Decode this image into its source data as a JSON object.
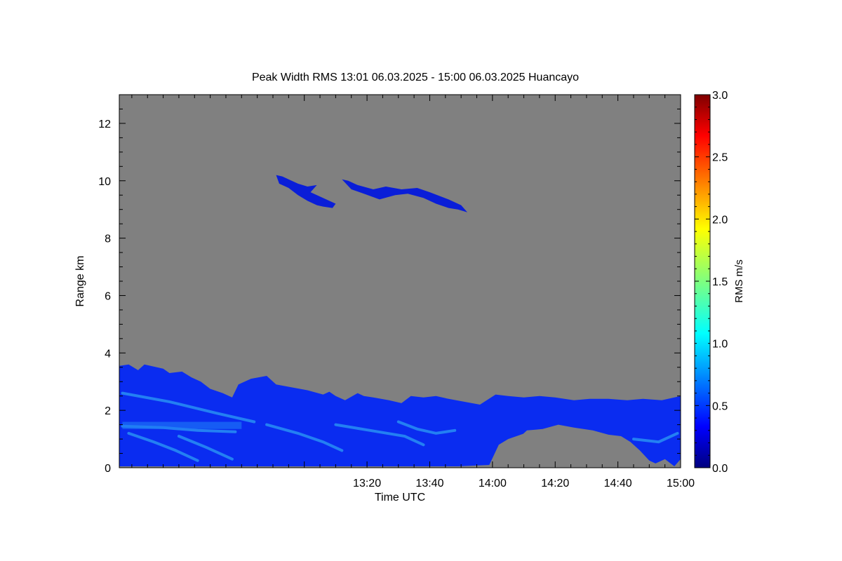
{
  "chart_data": {
    "type": "heatmap",
    "title": "Peak Width RMS   13:01 06.03.2025 - 15:00 06.03.2025 Huancayo",
    "xlabel": "Time UTC",
    "ylabel": "Range km",
    "x_range_minutes": [
      721,
      900
    ],
    "x_ticks": [
      {
        "minute": 800,
        "label": "13:20"
      },
      {
        "minute": 820,
        "label": "13:40"
      },
      {
        "minute": 840,
        "label": "14:00"
      },
      {
        "minute": 860,
        "label": "14:20"
      },
      {
        "minute": 880,
        "label": "14:40"
      },
      {
        "minute": 900,
        "label": "15:00"
      }
    ],
    "ylim": [
      0,
      13
    ],
    "y_ticks": [
      {
        "value": 0,
        "label": "0"
      },
      {
        "value": 2,
        "label": "2"
      },
      {
        "value": 4,
        "label": "4"
      },
      {
        "value": 6,
        "label": "6"
      },
      {
        "value": 8,
        "label": "8"
      },
      {
        "value": 10,
        "label": "10"
      },
      {
        "value": 12,
        "label": "12"
      }
    ],
    "background_color": "#808080",
    "colorbar": {
      "label": "RMS m/s",
      "range": [
        0,
        3
      ],
      "colormap": "jet",
      "ticks": [
        {
          "value": 0.0,
          "label": "0.0"
        },
        {
          "value": 0.5,
          "label": "0.5"
        },
        {
          "value": 1.0,
          "label": "1.0"
        },
        {
          "value": 1.5,
          "label": "1.5"
        },
        {
          "value": 2.0,
          "label": "2.0"
        },
        {
          "value": 2.5,
          "label": "2.5"
        },
        {
          "value": 3.0,
          "label": "3.0"
        }
      ]
    },
    "regions": [
      {
        "name": "boundary-layer-echo",
        "value": 0.35,
        "color": "#0a2cf0",
        "outline": [
          [
            721,
            0.05
          ],
          [
            721,
            3.55
          ],
          [
            724,
            3.6
          ],
          [
            727,
            3.4
          ],
          [
            729,
            3.6
          ],
          [
            735,
            3.45
          ],
          [
            737,
            3.3
          ],
          [
            741,
            3.35
          ],
          [
            744,
            3.15
          ],
          [
            747,
            3.0
          ],
          [
            750,
            2.75
          ],
          [
            754,
            2.6
          ],
          [
            757,
            2.45
          ],
          [
            759,
            2.9
          ],
          [
            763,
            3.1
          ],
          [
            768,
            3.2
          ],
          [
            771,
            2.9
          ],
          [
            776,
            2.8
          ],
          [
            781,
            2.7
          ],
          [
            786,
            2.55
          ],
          [
            788,
            2.65
          ],
          [
            790,
            2.5
          ],
          [
            793,
            2.35
          ],
          [
            797,
            2.6
          ],
          [
            799,
            2.5
          ],
          [
            802,
            2.45
          ],
          [
            807,
            2.35
          ],
          [
            811,
            2.25
          ],
          [
            814,
            2.5
          ],
          [
            818,
            2.45
          ],
          [
            822,
            2.5
          ],
          [
            826,
            2.4
          ],
          [
            831,
            2.3
          ],
          [
            836,
            2.2
          ],
          [
            841,
            2.55
          ],
          [
            845,
            2.5
          ],
          [
            850,
            2.45
          ],
          [
            855,
            2.5
          ],
          [
            860,
            2.45
          ],
          [
            866,
            2.35
          ],
          [
            871,
            2.4
          ],
          [
            877,
            2.4
          ],
          [
            883,
            2.35
          ],
          [
            888,
            2.4
          ],
          [
            894,
            2.35
          ],
          [
            900,
            2.5
          ],
          [
            900,
            0.3
          ],
          [
            898,
            0.05
          ],
          [
            895,
            0.3
          ],
          [
            892,
            0.15
          ],
          [
            890,
            0.25
          ],
          [
            887,
            0.6
          ],
          [
            884,
            0.9
          ],
          [
            881,
            1.1
          ],
          [
            877,
            1.15
          ],
          [
            872,
            1.3
          ],
          [
            866,
            1.4
          ],
          [
            861,
            1.5
          ],
          [
            856,
            1.35
          ],
          [
            851,
            1.3
          ],
          [
            849,
            1.1
          ],
          [
            847,
            1.0
          ],
          [
            845,
            0.9
          ],
          [
            843,
            0.75
          ],
          [
            841,
            0.5
          ],
          [
            840,
            0.1
          ],
          [
            829,
            0.05
          ],
          [
            808,
            0.05
          ],
          [
            790,
            0.05
          ],
          [
            755,
            0.05
          ]
        ]
      },
      {
        "name": "clear-gap-near-14-00",
        "value": null,
        "color": "#808080",
        "outline": [
          [
            839,
            0.1
          ],
          [
            842,
            0.8
          ],
          [
            845,
            1.0
          ],
          [
            849,
            1.15
          ],
          [
            853,
            1.3
          ],
          [
            858,
            1.25
          ],
          [
            862,
            1.1
          ],
          [
            866,
            1.0
          ],
          [
            870,
            1.05
          ],
          [
            874,
            0.95
          ],
          [
            877,
            0.95
          ],
          [
            881,
            0.7
          ],
          [
            884,
            0.55
          ],
          [
            887,
            0.3
          ],
          [
            889,
            0.05
          ],
          [
            839,
            0.05
          ]
        ]
      },
      {
        "name": "cirrus-left",
        "value": 0.25,
        "color": "#0a1ed8",
        "outline": [
          [
            771,
            10.2
          ],
          [
            772,
            9.9
          ],
          [
            775,
            9.75
          ],
          [
            778,
            9.5
          ],
          [
            781,
            9.3
          ],
          [
            784,
            9.15
          ],
          [
            786,
            9.1
          ],
          [
            789,
            9.05
          ],
          [
            790,
            9.2
          ],
          [
            787,
            9.35
          ],
          [
            784,
            9.5
          ],
          [
            782,
            9.6
          ],
          [
            784,
            9.85
          ],
          [
            781,
            9.8
          ],
          [
            778,
            9.9
          ],
          [
            775,
            10.05
          ],
          [
            773,
            10.15
          ]
        ]
      },
      {
        "name": "cirrus-right",
        "value": 0.25,
        "color": "#0a1ed8",
        "outline": [
          [
            792,
            10.05
          ],
          [
            795,
            9.7
          ],
          [
            799,
            9.55
          ],
          [
            804,
            9.35
          ],
          [
            809,
            9.5
          ],
          [
            813,
            9.55
          ],
          [
            818,
            9.4
          ],
          [
            822,
            9.2
          ],
          [
            826,
            9.05
          ],
          [
            829,
            9.0
          ],
          [
            832,
            8.9
          ],
          [
            830,
            9.15
          ],
          [
            826,
            9.35
          ],
          [
            820,
            9.6
          ],
          [
            816,
            9.75
          ],
          [
            811,
            9.7
          ],
          [
            806,
            9.8
          ],
          [
            802,
            9.7
          ],
          [
            797,
            9.85
          ],
          [
            794,
            10.0
          ]
        ]
      }
    ]
  }
}
